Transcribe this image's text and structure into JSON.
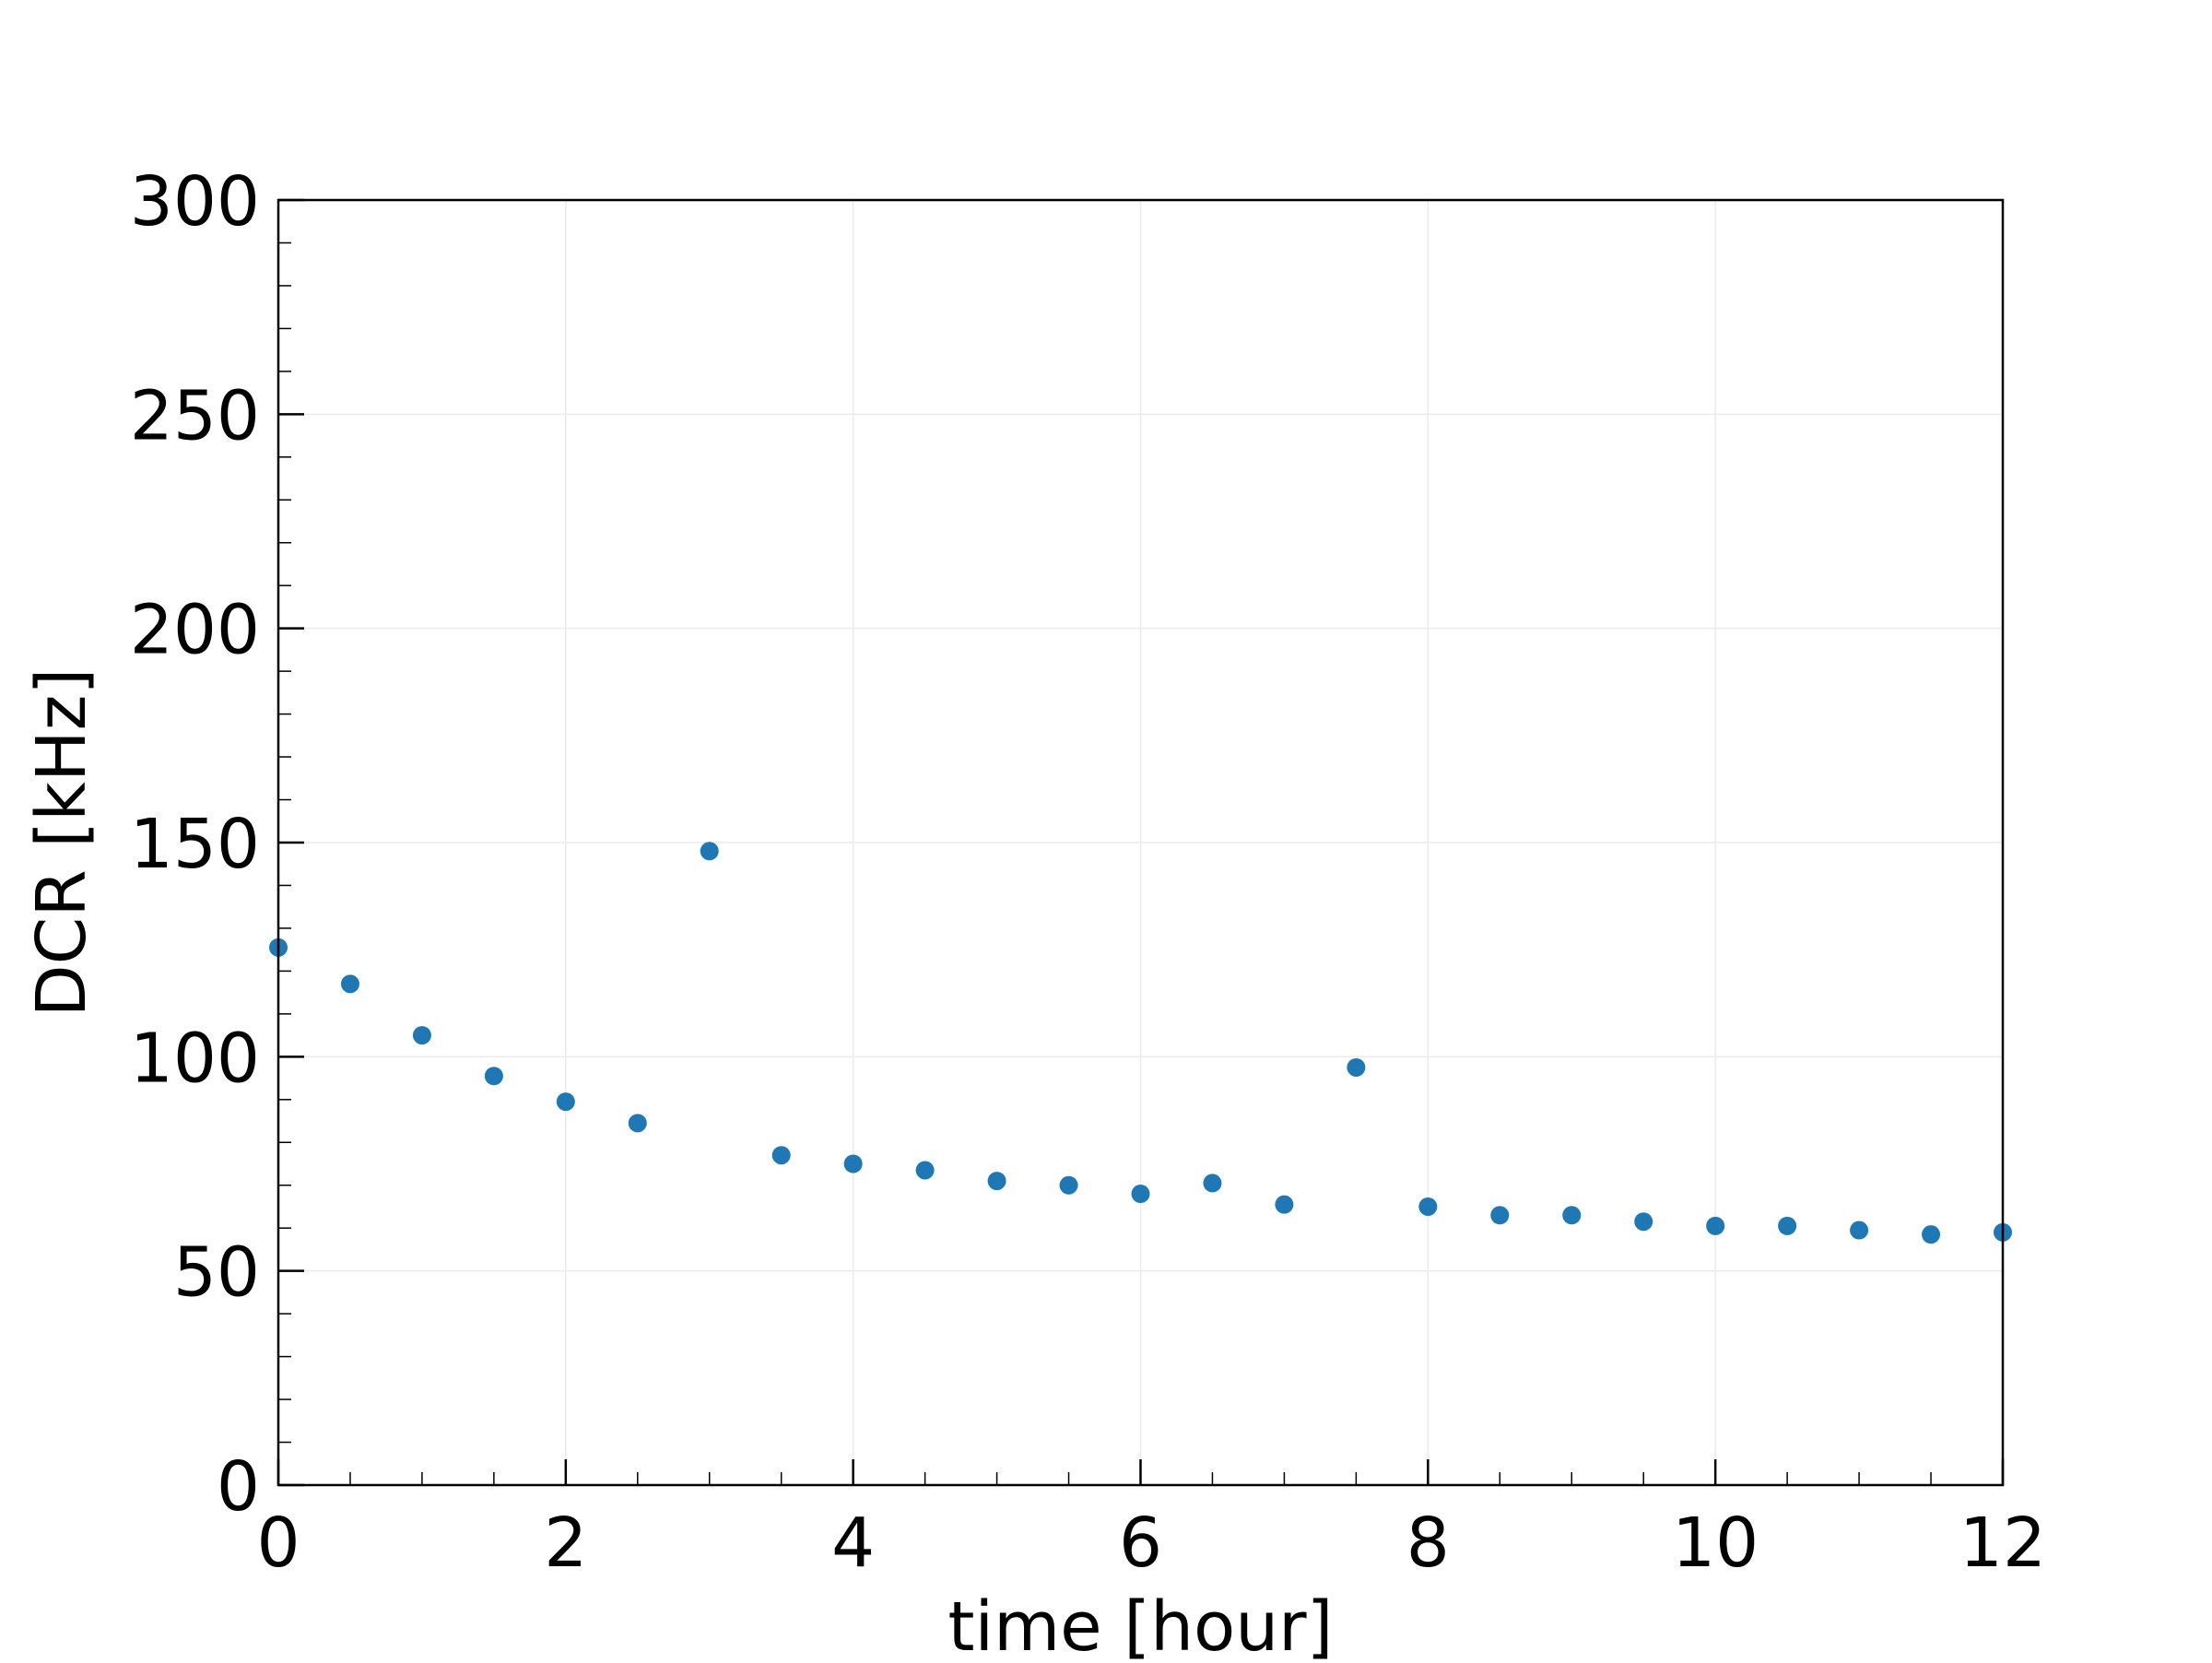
{
  "chart_data": {
    "type": "scatter",
    "title": "",
    "xlabel": "time [hour]",
    "ylabel": "DCR [kHz]",
    "xlim": [
      0,
      12
    ],
    "ylim": [
      0,
      300
    ],
    "x_ticks": [
      "0",
      "2",
      "4",
      "6",
      "8",
      "10",
      "12"
    ],
    "y_ticks": [
      "0",
      "50",
      "100",
      "150",
      "200",
      "250",
      "300"
    ],
    "x_minor_step": 0.5,
    "y_minor_step": 10,
    "grid": true,
    "legend": "none",
    "series": [
      {
        "color": "#1f77b4",
        "x": [
          0,
          0.5,
          1,
          1.5,
          2,
          2.5,
          3,
          3.5,
          4,
          4.5,
          5,
          5.5,
          6,
          6.5,
          7,
          7.5,
          8,
          8.5,
          9,
          9.5,
          10,
          10.5,
          11,
          11.5,
          12
        ],
        "y": [
          125.5,
          117,
          105,
          95.5,
          89.5,
          84.5,
          148,
          77,
          75,
          73.5,
          71,
          70,
          68,
          70.5,
          65.5,
          97.5,
          65,
          63,
          63,
          61.5,
          60.5,
          60.5,
          59.5,
          58.5,
          59
        ]
      }
    ]
  }
}
